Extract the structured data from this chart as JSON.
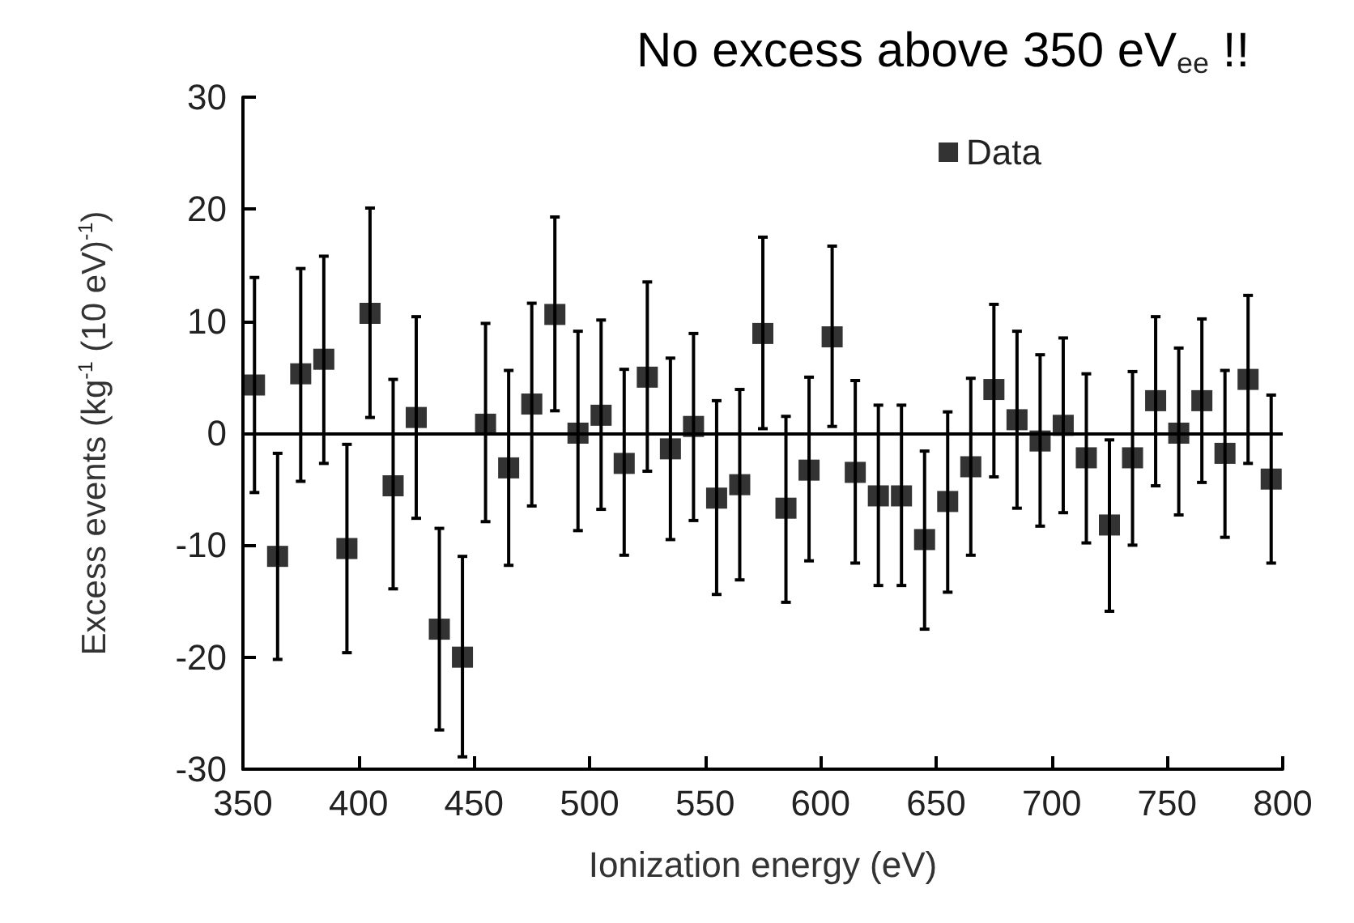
{
  "chart_data": {
    "type": "scatter",
    "title": "No excess above 350 eV$_{ee}$ !!",
    "xlabel": "Ionization energy (eV)",
    "ylabel": "Excess events (kg$^{-1}$ (10 eV)$^{-1}$)",
    "x": [
      355,
      365,
      375,
      385,
      395,
      405,
      415,
      425,
      435,
      445,
      455,
      465,
      475,
      485,
      495,
      505,
      515,
      525,
      535,
      545,
      555,
      565,
      575,
      585,
      595,
      605,
      615,
      625,
      635,
      645,
      655,
      665,
      675,
      685,
      695,
      705,
      715,
      725,
      735,
      745,
      755,
      765,
      775,
      785,
      795
    ],
    "series": [
      {
        "name": "Data",
        "color": "#000000",
        "values": [
          4.3,
          -11.0,
          5.3,
          6.6,
          -10.3,
          10.7,
          -4.7,
          1.4,
          -17.5,
          -20.0,
          0.8,
          -3.1,
          2.6,
          10.6,
          0.0,
          1.6,
          -2.7,
          5.0,
          -1.4,
          0.6,
          -5.8,
          -4.6,
          8.9,
          -6.7,
          -3.3,
          8.6,
          -3.5,
          -5.6,
          -5.6,
          -9.5,
          -6.1,
          -3.0,
          3.9,
          1.2,
          -0.7,
          0.7,
          -2.2,
          -8.2,
          -2.2,
          2.9,
          0.0,
          2.9,
          -1.8,
          4.8,
          -4.1
        ],
        "errors": [
          [
            -5.3,
            13.9
          ],
          [
            -20.2,
            -1.8
          ],
          [
            -4.3,
            14.7
          ],
          [
            -2.7,
            15.8
          ],
          [
            -19.6,
            -1.0
          ],
          [
            1.4,
            20.1
          ],
          [
            -13.9,
            4.8
          ],
          [
            -7.6,
            10.4
          ],
          [
            -26.5,
            -8.5
          ],
          [
            -28.9,
            -11.0
          ],
          [
            -7.9,
            9.8
          ],
          [
            -11.8,
            5.6
          ],
          [
            -6.5,
            11.6
          ],
          [
            2.0,
            19.3
          ],
          [
            -8.7,
            9.1
          ],
          [
            -6.8,
            10.1
          ],
          [
            -10.9,
            5.7
          ],
          [
            -3.4,
            13.5
          ],
          [
            -9.5,
            6.7
          ],
          [
            -7.8,
            8.9
          ],
          [
            -14.4,
            2.9
          ],
          [
            -13.1,
            3.9
          ],
          [
            0.4,
            17.5
          ],
          [
            -15.1,
            1.5
          ],
          [
            -11.4,
            5.0
          ],
          [
            0.6,
            16.7
          ],
          [
            -11.6,
            4.7
          ],
          [
            -13.6,
            2.5
          ],
          [
            -13.6,
            2.5
          ],
          [
            -17.5,
            -1.6
          ],
          [
            -14.2,
            1.9
          ],
          [
            -10.9,
            4.9
          ],
          [
            -3.9,
            11.5
          ],
          [
            -6.7,
            9.1
          ],
          [
            -8.3,
            7.0
          ],
          [
            -7.1,
            8.5
          ],
          [
            -9.8,
            5.3
          ],
          [
            -15.9,
            -0.6
          ],
          [
            -10.0,
            5.5
          ],
          [
            -4.7,
            10.4
          ],
          [
            -7.3,
            7.6
          ],
          [
            -4.4,
            10.2
          ],
          [
            -9.3,
            5.6
          ],
          [
            -2.7,
            12.3
          ],
          [
            -11.6,
            3.4
          ]
        ]
      }
    ],
    "xlim": [
      350,
      800
    ],
    "xticks": [
      350,
      400,
      450,
      500,
      550,
      600,
      650,
      700,
      750,
      800
    ],
    "ylim": [
      -30,
      30
    ],
    "yticks": [
      -30,
      -20,
      -10,
      0,
      10,
      20,
      30
    ],
    "ref_lines": [
      {
        "axis": "y",
        "value": 0,
        "color": "#000000",
        "line_style": "solid"
      }
    ],
    "marker": "square",
    "legend": "top right",
    "grid": false
  }
}
